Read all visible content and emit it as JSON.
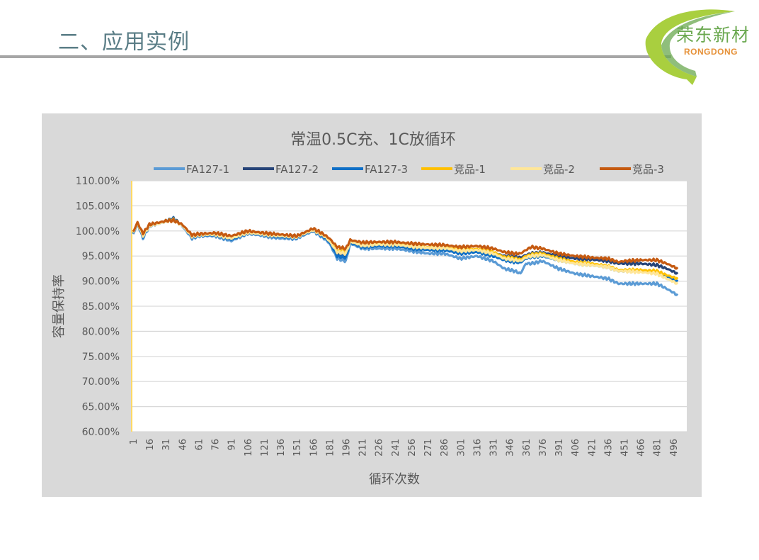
{
  "slide": {
    "title": "二、应用实例"
  },
  "logo": {
    "name_cn": "荣东新材",
    "name_en": "RONGDONG"
  },
  "colors": {
    "title": "#5a7d86",
    "rule": "#a6a6a6",
    "panel_bg": "#d9d9d9",
    "logo_green": "#6aa84f",
    "logo_orange": "#e69138"
  },
  "chart_data": {
    "type": "line",
    "title": "常温0.5C充、1C放循环",
    "xlabel": "循环次数",
    "ylabel": "容量保持率",
    "xlim": [
      1,
      500
    ],
    "ylim": [
      0.6,
      1.1
    ],
    "grid": true,
    "legend_position": "top",
    "x_ticks": [
      1,
      16,
      31,
      46,
      61,
      76,
      91,
      106,
      121,
      136,
      151,
      166,
      181,
      196,
      211,
      226,
      241,
      256,
      271,
      286,
      301,
      316,
      331,
      346,
      361,
      376,
      391,
      406,
      421,
      436,
      451,
      466,
      481,
      496
    ],
    "y_ticks": [
      "60.00%",
      "65.00%",
      "70.00%",
      "75.00%",
      "80.00%",
      "85.00%",
      "90.00%",
      "95.00%",
      "100.00%",
      "105.00%",
      "110.00%"
    ],
    "series": [
      {
        "name": "FA127-1",
        "color": "#5b9bd5",
        "points": [
          [
            1,
            0.993
          ],
          [
            5,
            1.015
          ],
          [
            10,
            0.985
          ],
          [
            16,
            1.01
          ],
          [
            25,
            1.015
          ],
          [
            31,
            1.02
          ],
          [
            38,
            1.025
          ],
          [
            46,
            1.01
          ],
          [
            55,
            0.985
          ],
          [
            61,
            0.99
          ],
          [
            76,
            0.99
          ],
          [
            91,
            0.98
          ],
          [
            106,
            0.995
          ],
          [
            121,
            0.99
          ],
          [
            136,
            0.985
          ],
          [
            151,
            0.985
          ],
          [
            166,
            1.0
          ],
          [
            176,
            0.985
          ],
          [
            181,
            0.975
          ],
          [
            188,
            0.945
          ],
          [
            196,
            0.94
          ],
          [
            200,
            0.975
          ],
          [
            211,
            0.965
          ],
          [
            226,
            0.965
          ],
          [
            241,
            0.965
          ],
          [
            256,
            0.96
          ],
          [
            271,
            0.955
          ],
          [
            286,
            0.955
          ],
          [
            301,
            0.945
          ],
          [
            316,
            0.95
          ],
          [
            331,
            0.94
          ],
          [
            341,
            0.925
          ],
          [
            351,
            0.92
          ],
          [
            356,
            0.915
          ],
          [
            361,
            0.935
          ],
          [
            366,
            0.935
          ],
          [
            376,
            0.94
          ],
          [
            391,
            0.925
          ],
          [
            406,
            0.915
          ],
          [
            421,
            0.91
          ],
          [
            436,
            0.905
          ],
          [
            446,
            0.895
          ],
          [
            451,
            0.895
          ],
          [
            466,
            0.895
          ],
          [
            481,
            0.895
          ],
          [
            490,
            0.885
          ],
          [
            500,
            0.872
          ]
        ]
      },
      {
        "name": "FA127-2",
        "color": "#264478",
        "points": [
          [
            1,
            0.996
          ],
          [
            5,
            1.016
          ],
          [
            10,
            0.99
          ],
          [
            16,
            1.012
          ],
          [
            25,
            1.016
          ],
          [
            31,
            1.02
          ],
          [
            38,
            1.024
          ],
          [
            46,
            1.012
          ],
          [
            55,
            0.99
          ],
          [
            61,
            0.992
          ],
          [
            76,
            0.993
          ],
          [
            91,
            0.985
          ],
          [
            106,
            0.997
          ],
          [
            121,
            0.993
          ],
          [
            136,
            0.99
          ],
          [
            151,
            0.988
          ],
          [
            166,
            1.002
          ],
          [
            176,
            0.99
          ],
          [
            181,
            0.98
          ],
          [
            188,
            0.955
          ],
          [
            196,
            0.952
          ],
          [
            200,
            0.978
          ],
          [
            211,
            0.97
          ],
          [
            226,
            0.972
          ],
          [
            241,
            0.972
          ],
          [
            256,
            0.968
          ],
          [
            271,
            0.965
          ],
          [
            286,
            0.965
          ],
          [
            301,
            0.96
          ],
          [
            316,
            0.962
          ],
          [
            331,
            0.957
          ],
          [
            341,
            0.95
          ],
          [
            351,
            0.948
          ],
          [
            356,
            0.947
          ],
          [
            361,
            0.952
          ],
          [
            366,
            0.955
          ],
          [
            376,
            0.957
          ],
          [
            391,
            0.95
          ],
          [
            406,
            0.945
          ],
          [
            421,
            0.943
          ],
          [
            436,
            0.94
          ],
          [
            446,
            0.935
          ],
          [
            451,
            0.935
          ],
          [
            466,
            0.935
          ],
          [
            481,
            0.932
          ],
          [
            490,
            0.925
          ],
          [
            500,
            0.915
          ]
        ]
      },
      {
        "name": "FA127-3",
        "color": "#0f6fc6",
        "points": [
          [
            1,
            0.995
          ],
          [
            5,
            1.015
          ],
          [
            10,
            0.988
          ],
          [
            16,
            1.011
          ],
          [
            25,
            1.015
          ],
          [
            31,
            1.019
          ],
          [
            38,
            1.023
          ],
          [
            46,
            1.011
          ],
          [
            55,
            0.988
          ],
          [
            61,
            0.991
          ],
          [
            76,
            0.992
          ],
          [
            91,
            0.983
          ],
          [
            106,
            0.996
          ],
          [
            121,
            0.992
          ],
          [
            136,
            0.988
          ],
          [
            151,
            0.987
          ],
          [
            166,
            1.001
          ],
          [
            176,
            0.988
          ],
          [
            181,
            0.978
          ],
          [
            188,
            0.95
          ],
          [
            196,
            0.947
          ],
          [
            200,
            0.977
          ],
          [
            211,
            0.968
          ],
          [
            226,
            0.97
          ],
          [
            241,
            0.97
          ],
          [
            256,
            0.965
          ],
          [
            271,
            0.962
          ],
          [
            286,
            0.962
          ],
          [
            301,
            0.955
          ],
          [
            316,
            0.958
          ],
          [
            331,
            0.95
          ],
          [
            341,
            0.942
          ],
          [
            351,
            0.938
          ],
          [
            356,
            0.937
          ],
          [
            361,
            0.945
          ],
          [
            366,
            0.948
          ],
          [
            376,
            0.95
          ],
          [
            391,
            0.942
          ],
          [
            406,
            0.935
          ],
          [
            421,
            0.932
          ],
          [
            436,
            0.928
          ],
          [
            446,
            0.92
          ],
          [
            451,
            0.92
          ],
          [
            466,
            0.92
          ],
          [
            481,
            0.918
          ],
          [
            490,
            0.91
          ],
          [
            500,
            0.9
          ]
        ]
      },
      {
        "name": "竞品-1",
        "color": "#ffc000",
        "points": [
          [
            1,
            0.997
          ],
          [
            5,
            1.016
          ],
          [
            10,
            0.992
          ],
          [
            16,
            1.012
          ],
          [
            25,
            1.016
          ],
          [
            31,
            1.02
          ],
          [
            38,
            1.022
          ],
          [
            46,
            1.012
          ],
          [
            55,
            0.99
          ],
          [
            61,
            0.993
          ],
          [
            76,
            0.994
          ],
          [
            91,
            0.987
          ],
          [
            106,
            0.998
          ],
          [
            121,
            0.994
          ],
          [
            136,
            0.991
          ],
          [
            151,
            0.989
          ],
          [
            166,
            1.003
          ],
          [
            176,
            0.991
          ],
          [
            181,
            0.982
          ],
          [
            188,
            0.96
          ],
          [
            196,
            0.958
          ],
          [
            200,
            0.98
          ],
          [
            211,
            0.972
          ],
          [
            226,
            0.974
          ],
          [
            241,
            0.974
          ],
          [
            256,
            0.97
          ],
          [
            271,
            0.967
          ],
          [
            286,
            0.967
          ],
          [
            301,
            0.962
          ],
          [
            316,
            0.964
          ],
          [
            331,
            0.958
          ],
          [
            341,
            0.948
          ],
          [
            351,
            0.945
          ],
          [
            356,
            0.943
          ],
          [
            361,
            0.95
          ],
          [
            366,
            0.953
          ],
          [
            376,
            0.955
          ],
          [
            391,
            0.945
          ],
          [
            406,
            0.938
          ],
          [
            421,
            0.935
          ],
          [
            436,
            0.93
          ],
          [
            446,
            0.922
          ],
          [
            451,
            0.922
          ],
          [
            466,
            0.922
          ],
          [
            481,
            0.92
          ],
          [
            490,
            0.912
          ],
          [
            500,
            0.905
          ]
        ]
      },
      {
        "name": "竞品-2",
        "color": "#ffe699",
        "points": [
          [
            1,
            0.996
          ],
          [
            5,
            1.016
          ],
          [
            10,
            0.99
          ],
          [
            16,
            1.011
          ],
          [
            25,
            1.015
          ],
          [
            31,
            1.019
          ],
          [
            38,
            1.021
          ],
          [
            46,
            1.011
          ],
          [
            55,
            0.989
          ],
          [
            61,
            0.992
          ],
          [
            76,
            0.993
          ],
          [
            91,
            0.985
          ],
          [
            106,
            0.997
          ],
          [
            121,
            0.993
          ],
          [
            136,
            0.99
          ],
          [
            151,
            0.988
          ],
          [
            166,
            1.002
          ],
          [
            176,
            0.99
          ],
          [
            181,
            0.98
          ],
          [
            188,
            0.958
          ],
          [
            196,
            0.955
          ],
          [
            200,
            0.979
          ],
          [
            211,
            0.971
          ],
          [
            226,
            0.973
          ],
          [
            241,
            0.973
          ],
          [
            256,
            0.969
          ],
          [
            271,
            0.966
          ],
          [
            286,
            0.966
          ],
          [
            301,
            0.96
          ],
          [
            316,
            0.962
          ],
          [
            331,
            0.955
          ],
          [
            341,
            0.945
          ],
          [
            351,
            0.942
          ],
          [
            356,
            0.94
          ],
          [
            361,
            0.947
          ],
          [
            366,
            0.95
          ],
          [
            376,
            0.952
          ],
          [
            391,
            0.942
          ],
          [
            406,
            0.935
          ],
          [
            421,
            0.932
          ],
          [
            436,
            0.928
          ],
          [
            446,
            0.92
          ],
          [
            451,
            0.92
          ],
          [
            466,
            0.918
          ],
          [
            481,
            0.915
          ],
          [
            490,
            0.905
          ],
          [
            500,
            0.895
          ]
        ]
      },
      {
        "name": "竞品-3",
        "color": "#c55a11",
        "points": [
          [
            1,
            0.998
          ],
          [
            5,
            1.017
          ],
          [
            10,
            0.995
          ],
          [
            16,
            1.013
          ],
          [
            25,
            1.017
          ],
          [
            31,
            1.02
          ],
          [
            38,
            1.021
          ],
          [
            46,
            1.013
          ],
          [
            55,
            0.992
          ],
          [
            61,
            0.994
          ],
          [
            76,
            0.996
          ],
          [
            91,
            0.99
          ],
          [
            106,
            1.0
          ],
          [
            121,
            0.996
          ],
          [
            136,
            0.993
          ],
          [
            151,
            0.99
          ],
          [
            166,
            1.005
          ],
          [
            176,
            0.993
          ],
          [
            181,
            0.985
          ],
          [
            188,
            0.968
          ],
          [
            196,
            0.965
          ],
          [
            200,
            0.982
          ],
          [
            211,
            0.977
          ],
          [
            226,
            0.978
          ],
          [
            241,
            0.978
          ],
          [
            256,
            0.975
          ],
          [
            271,
            0.973
          ],
          [
            286,
            0.972
          ],
          [
            301,
            0.968
          ],
          [
            316,
            0.97
          ],
          [
            331,
            0.965
          ],
          [
            341,
            0.958
          ],
          [
            351,
            0.955
          ],
          [
            356,
            0.955
          ],
          [
            361,
            0.962
          ],
          [
            366,
            0.968
          ],
          [
            376,
            0.965
          ],
          [
            391,
            0.955
          ],
          [
            406,
            0.95
          ],
          [
            421,
            0.947
          ],
          [
            436,
            0.945
          ],
          [
            446,
            0.938
          ],
          [
            451,
            0.94
          ],
          [
            466,
            0.942
          ],
          [
            481,
            0.942
          ],
          [
            490,
            0.935
          ],
          [
            500,
            0.925
          ]
        ]
      }
    ]
  }
}
